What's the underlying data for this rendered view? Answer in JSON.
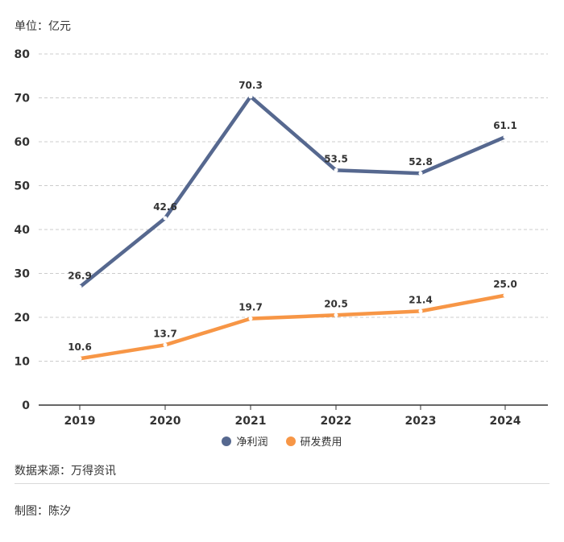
{
  "unit_label": "单位：亿元",
  "source_label": "数据来源：万得资讯",
  "author_label": "制图：陈汐",
  "chart_data": {
    "type": "line",
    "categories": [
      "2019",
      "2020",
      "2021",
      "2022",
      "2023",
      "2024"
    ],
    "series": [
      {
        "name": "净利润",
        "values": [
          26.9,
          42.6,
          70.3,
          53.5,
          52.8,
          61.1
        ],
        "color": "#56688f"
      },
      {
        "name": "研发费用",
        "values": [
          10.6,
          13.7,
          19.7,
          20.5,
          21.4,
          25.0
        ],
        "color": "#f79646"
      }
    ],
    "ylim": [
      0,
      80
    ],
    "yticks": [
      0,
      10,
      20,
      30,
      40,
      50,
      60,
      70,
      80
    ],
    "grid": true,
    "legend": "bottom-center",
    "data_labels": true,
    "grid_color": "#cccccc",
    "axis_color": "#333333"
  }
}
